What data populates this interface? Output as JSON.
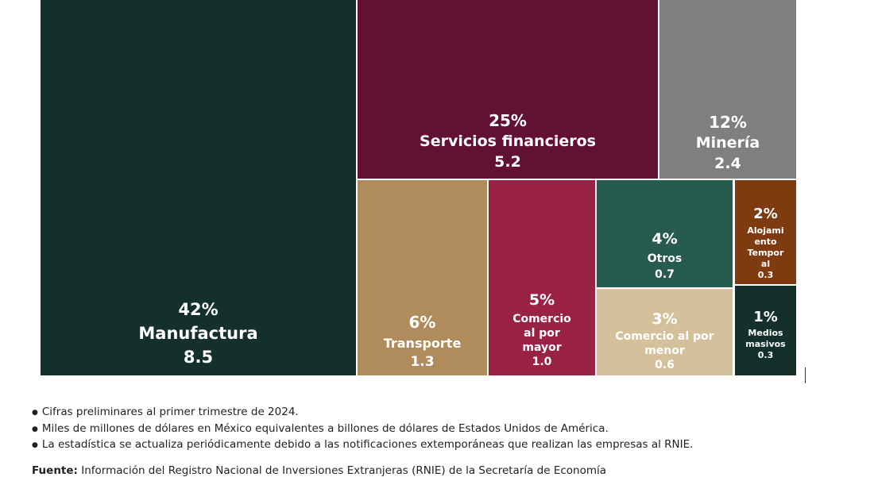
{
  "chart_data": {
    "type": "treemap",
    "title": "",
    "unit": "Miles de millones de dólares",
    "items": [
      {
        "name": "Manufactura",
        "percent": "42%",
        "value": 8.5,
        "value_label": "8.5",
        "color": "#14302b"
      },
      {
        "name": "Servicios financieros",
        "percent": "25%",
        "value": 5.2,
        "value_label": "5.2",
        "color": "#621132"
      },
      {
        "name": "Minería",
        "percent": "12%",
        "value": 2.4,
        "value_label": "2.4",
        "color": "#7f7f7f"
      },
      {
        "name": "Transporte",
        "percent": "6%",
        "value": 1.3,
        "value_label": "1.3",
        "color": "#b08c5c"
      },
      {
        "name": "Comercio al por mayor",
        "percent": "5%",
        "value": 1.0,
        "value_label": "1.0",
        "color": "#9b2247"
      },
      {
        "name": "Otros",
        "percent": "4%",
        "value": 0.7,
        "value_label": "0.7",
        "color": "#275b4d"
      },
      {
        "name": "Comercio al por menor",
        "percent": "3%",
        "value": 0.6,
        "value_label": "0.6",
        "color": "#d4c19c"
      },
      {
        "name": "Alojamiento Temporal",
        "percent": "2%",
        "value": 0.3,
        "value_label": "0.3",
        "color": "#7f3b10"
      },
      {
        "name": "Medios masivos",
        "percent": "1%",
        "value": 0.3,
        "value_label": "0.3",
        "color": "#14302b"
      }
    ],
    "display_labels": {
      "comercio_mayor": [
        "Comercio",
        "al por",
        "mayor"
      ],
      "comercio_menor": [
        "Comercio al por",
        "menor"
      ],
      "alojamiento": [
        "Alojami",
        "ento",
        "Tempor",
        "al"
      ],
      "medios": [
        "Medios",
        "masivos"
      ]
    }
  },
  "notes": [
    "Cifras preliminares al primer trimestre de 2024.",
    "Miles de millones de dólares en México equivalentes a billones de dólares de Estados Unidos de América.",
    "La estadística se actualiza periódicamente debido a las notificaciones extemporáneas que realizan las empresas al RNIE."
  ],
  "source": {
    "label": "Fuente:",
    "text": "Información del Registro Nacional de Inversiones Extranjeras (RNIE) de la Secretaría de Economía"
  }
}
